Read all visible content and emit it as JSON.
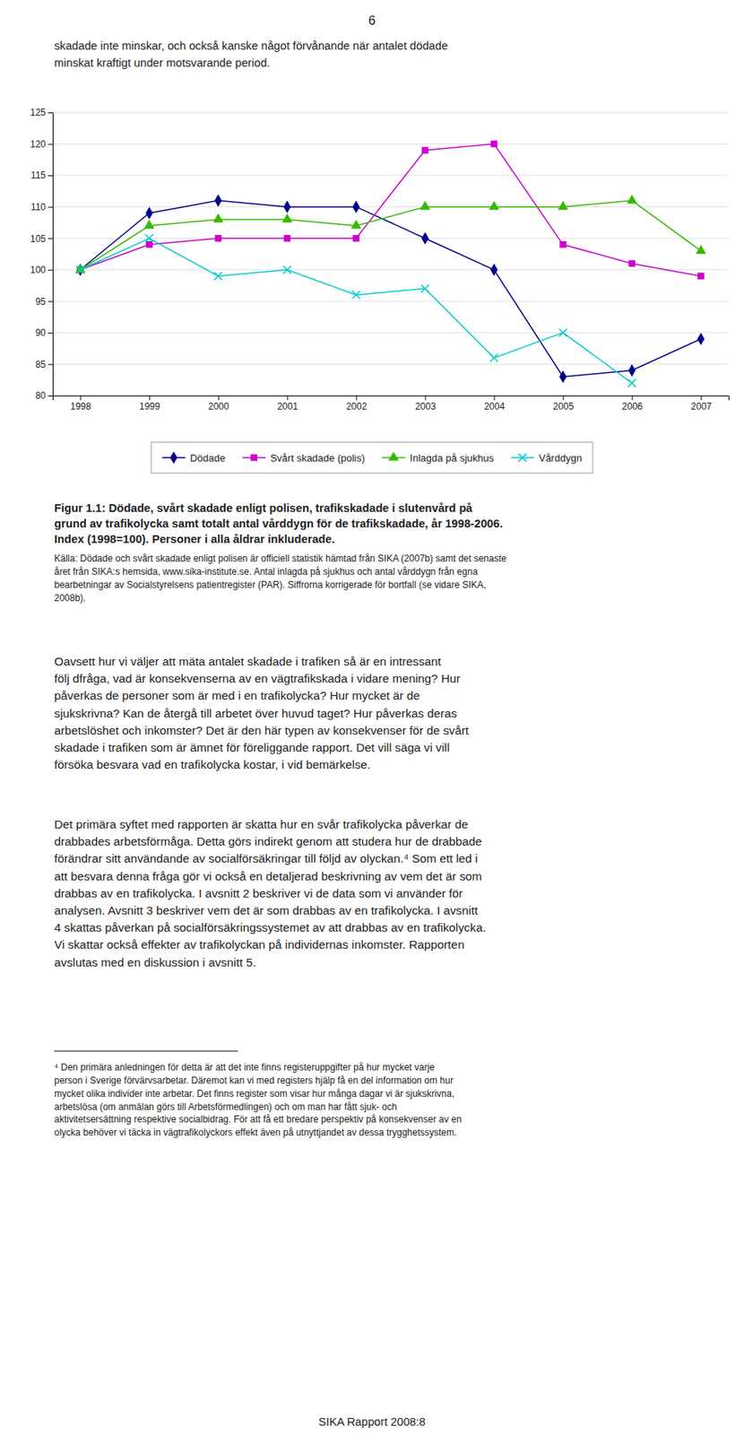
{
  "page_number": "6",
  "top_text": [
    "skadade inte minskar, och också kanske något förvånande när antalet dödade",
    "minskat kraftigt under motsvarande period."
  ],
  "caption": [
    "Figur 1.1: Dödade, svårt skadade enligt polisen, trafikskadade i slutenvård på",
    "grund av trafikolycka samt totalt antal vårddygn för de trafikskadade, år 1998-2006.",
    "Index (1998=100). Personer i alla åldrar inkluderade."
  ],
  "source": [
    "Källa: Dödade och svårt skadade enligt polisen är officiell statistik hämtad från SIKA (2007b) samt det senaste",
    "året från SIKA:s hemsida, www.sika-institute.se. Antal inlagda på sjukhus och antal vårddygn från egna",
    "bearbetningar av Socialstyrelsens patientregister (PAR). Siffrorna korrigerade för bortfall (se vidare SIKA,",
    "2008b)."
  ],
  "body": [
    [
      "Oavsett hur vi väljer att mäta antalet skadade i trafiken så är en intressant",
      "följ dfråga, vad är konsekvenserna av en vägtrafikskada i vidare mening? Hur",
      "påverkas de personer som är med i en trafikolycka? Hur mycket är de",
      "sjukskrivna? Kan de återgå till arbetet över huvud taget? Hur påverkas deras",
      "arbetslöshet och inkomster? Det är den här typen av konsekvenser för de svårt",
      "skadade i trafiken som är ämnet för föreliggande rapport. Det vill säga vi vill",
      "försöka besvara vad en trafikolycka kostar, i vid bemärkelse."
    ],
    [
      "Det primära syftet med rapporten är skatta hur en svår trafikolycka påverkar de",
      "drabbades arbetsförmåga. Detta görs indirekt genom att studera hur de drabbade",
      "förändrar sitt användande av socialförsäkringar till följd av olyckan.⁴ Som ett led i",
      "att besvara denna fråga gör vi också en detaljerad beskrivning av vem det är som",
      "drabbas av en trafikolycka. I avsnitt 2 beskriver vi de data som vi använder för",
      "analysen. Avsnitt 3 beskriver vem det är som drabbas av en trafikolycka. I avsnitt",
      "4 skattas påverkan på socialförsäkringssystemet av att drabbas av en trafikolycka.",
      "Vi skattar också effekter av trafikolyckan på individernas inkomster. Rapporten",
      "avslutas med en diskussion i avsnitt 5."
    ]
  ],
  "footnote": [
    "⁴ Den primära anledningen för detta är att det inte finns registeruppgifter på hur mycket varje",
    "person i Sverige förvärvsarbetar. Däremot kan vi med registers hjälp få en del information om hur",
    "mycket olika individer inte arbetar. Det finns register som visar hur många dagar vi är sjukskrivna,",
    "arbetslösa (om anmälan görs till Arbetsförmedlingen) och om man har fått sjuk- och",
    "aktivitetsersättning respektive socialbidrag. För att få ett bredare perspektiv på konsekvenser av en",
    "olycka behöver vi täcka in vägtrafikolyckors effekt även på utnyttjandet av dessa trygghetssystem."
  ],
  "footer": "SIKA Rapport 2008:8",
  "chart_data": {
    "type": "line",
    "x": [
      1998,
      1999,
      2000,
      2001,
      2002,
      2003,
      2004,
      2005,
      2006,
      2007
    ],
    "xlim": [
      1997.6,
      2007.4
    ],
    "xticks": [
      1998,
      1999,
      2000,
      2001,
      2002,
      2003,
      2004,
      2005,
      2006,
      2007
    ],
    "ylim": [
      80,
      125
    ],
    "yticks": [
      80,
      85,
      90,
      95,
      100,
      105,
      110,
      115,
      120,
      125
    ],
    "grid": true,
    "legend": "bottom",
    "series": [
      {
        "name": "Dödade",
        "color": "#00008B",
        "marker": "diamond",
        "values": [
          100,
          109,
          111,
          110,
          110,
          105,
          100,
          83,
          84,
          89
        ]
      },
      {
        "name": "Svårt skadade (polis)",
        "color": "#CC00CC",
        "marker": "square",
        "values": [
          100,
          104,
          105,
          105,
          105,
          119,
          120,
          104,
          101,
          99
        ]
      },
      {
        "name": "Inlagda på sjukhus",
        "color": "#33BB00",
        "marker": "triangle",
        "values": [
          100,
          107,
          108,
          108,
          107,
          110,
          110,
          110,
          111,
          103
        ]
      },
      {
        "name": "Vårddygn",
        "color": "#00CCCC",
        "marker": "x",
        "values": [
          100,
          105,
          99,
          100,
          96,
          97,
          86,
          90,
          82,
          null
        ]
      }
    ]
  }
}
